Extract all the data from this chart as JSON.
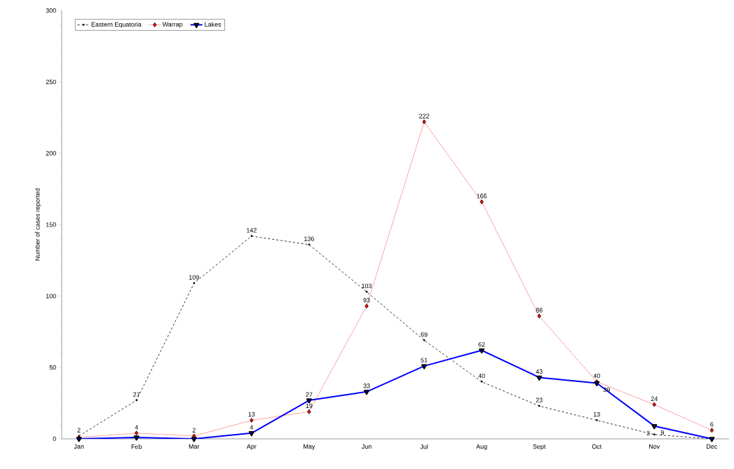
{
  "chart_data": {
    "type": "line",
    "ylabel": "Number of cases reported",
    "categories": [
      "Jan",
      "Feb",
      "Mar",
      "Apr",
      "May",
      "Jun",
      "Jul",
      "Aug",
      "Sept",
      "Oct",
      "Nov",
      "Dec"
    ],
    "ylim": [
      0,
      300
    ],
    "yticks": [
      0,
      50,
      100,
      150,
      200,
      250,
      300
    ],
    "legend": "top left",
    "grid": false,
    "series": [
      {
        "name": "Eastern Equatoria",
        "color": "#000000",
        "marker": "circle",
        "line_style": "dashed",
        "values": [
          2,
          27,
          109,
          142,
          136,
          103,
          69,
          40,
          23,
          13,
          3,
          0
        ],
        "value_labels": [
          "2",
          "27",
          "109",
          "142",
          "136",
          "103",
          "69",
          "40",
          "23",
          "13",
          "3",
          null
        ]
      },
      {
        "name": "Warrap",
        "color": "#ff0000",
        "marker": "diamond",
        "line_style": "dotted",
        "values": [
          1,
          4,
          2,
          13,
          19,
          93,
          222,
          166,
          86,
          40,
          24,
          6
        ],
        "value_labels": [
          null,
          "4",
          "2",
          "13",
          "19",
          "93",
          "222",
          "166",
          "86",
          "40",
          "24",
          "6"
        ]
      },
      {
        "name": "Lakes",
        "color": "#0000ff",
        "marker": "triangle",
        "line_style": "solid",
        "values": [
          0,
          1,
          0,
          4,
          27,
          33,
          51,
          62,
          43,
          39,
          9,
          0
        ],
        "value_labels": [
          null,
          null,
          null,
          "4",
          "27",
          "33",
          "51",
          "62",
          "43",
          "39",
          "9",
          null
        ]
      }
    ]
  }
}
